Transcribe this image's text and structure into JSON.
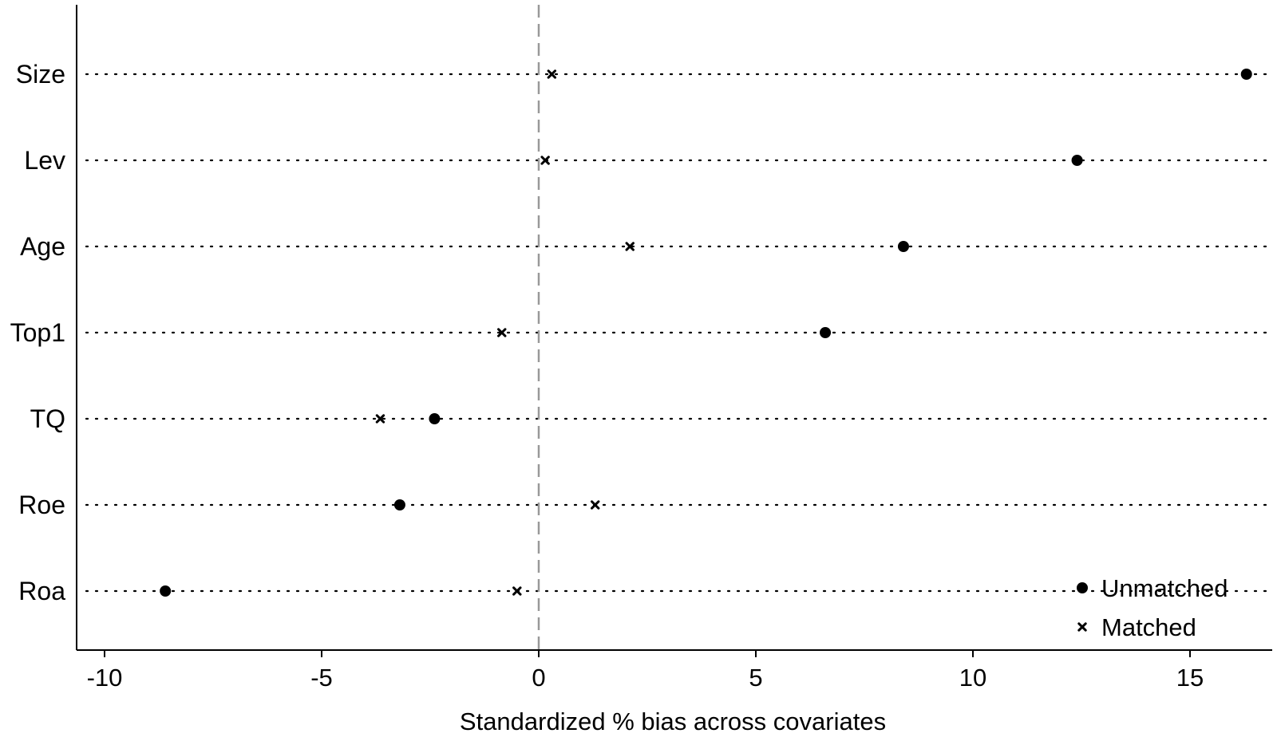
{
  "chart_data": {
    "type": "scatter",
    "title": "",
    "xlabel": "Standardized % bias across covariates",
    "ylabel": "",
    "xlim": [
      -10.6,
      16.9
    ],
    "xticks": [
      -10,
      -5,
      0,
      5,
      10,
      15
    ],
    "xtick_labels": [
      "-10",
      "-5",
      "0",
      "5",
      "10",
      "15"
    ],
    "categories": [
      "Size",
      "Lev",
      "Age",
      "Top1",
      "TQ",
      "Roe",
      "Roa"
    ],
    "reference_line": {
      "x": 0,
      "style": "dashed",
      "color": "#999999"
    },
    "grid": "dotted horizontal guide per covariate",
    "legend_position": "bottom-right",
    "series": [
      {
        "name": "Unmatched",
        "marker": "circle",
        "color": "#000000",
        "values": [
          16.3,
          12.4,
          8.4,
          6.6,
          -2.4,
          -3.2,
          -8.6
        ]
      },
      {
        "name": "Matched",
        "marker": "x",
        "color": "#000000",
        "values": [
          0.3,
          0.15,
          2.1,
          -0.85,
          -3.65,
          1.3,
          -0.5
        ]
      }
    ]
  }
}
